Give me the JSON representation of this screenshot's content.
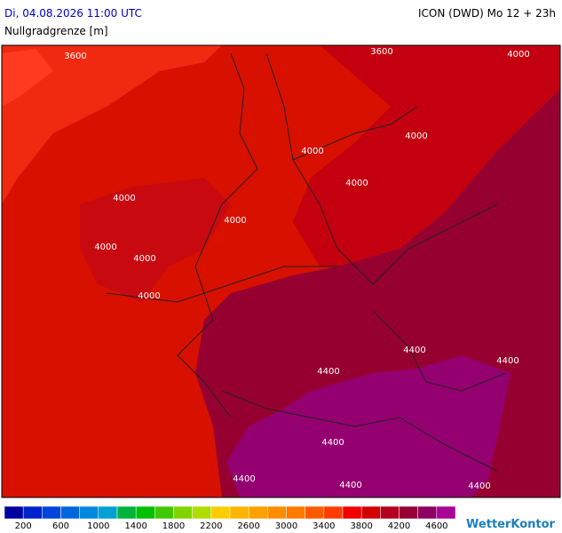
{
  "header": {
    "date": "Di, 04.08.2026 11:00 UTC",
    "model": "ICON (DWD) Mo 12 + 23h",
    "title": "Nullgradgrenze [m]"
  },
  "map": {
    "contour_labels": [
      "3600",
      "3600",
      "4000",
      "4000",
      "4000",
      "4000",
      "4000",
      "4000",
      "4000",
      "4000",
      "4000",
      "4400",
      "4400",
      "4400",
      "4400",
      "4400",
      "4400",
      "4400"
    ]
  },
  "legend": {
    "colors": [
      "#0000a0",
      "#0022cc",
      "#0044dd",
      "#0066dd",
      "#0088dd",
      "#00a0d0",
      "#00b43c",
      "#00c000",
      "#40c800",
      "#80d400",
      "#b0dc00",
      "#ffcc00",
      "#ffb400",
      "#ffa000",
      "#ff8c00",
      "#ff7800",
      "#ff5a00",
      "#ff3c00",
      "#f00000",
      "#d20000",
      "#b4001e",
      "#960032",
      "#8c0064",
      "#aa0096"
    ],
    "labels": [
      "200",
      "600",
      "1000",
      "1400",
      "1800",
      "2200",
      "2600",
      "3000",
      "3400",
      "3800",
      "4200",
      "4600"
    ]
  },
  "logo": "WetterKontor"
}
